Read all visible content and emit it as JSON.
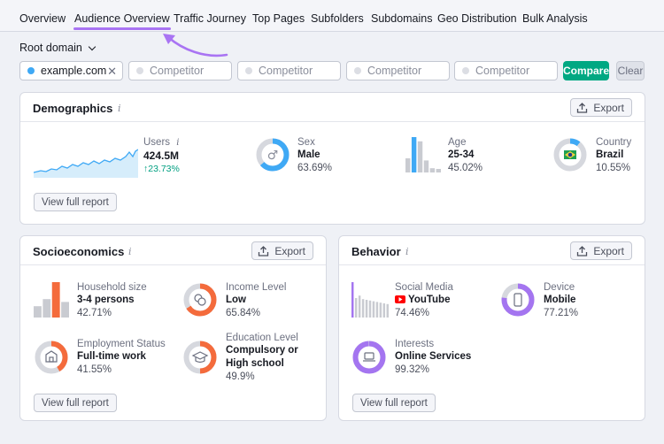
{
  "nav": {
    "tabs": [
      "Overview",
      "Audience Overview",
      "Traffic Journey",
      "Top Pages",
      "Subfolders",
      "Subdomains",
      "Geo Distribution",
      "Bulk Analysis"
    ],
    "active_index": 1
  },
  "root_domain_label": "Root domain",
  "domains": {
    "primary": "example.com",
    "competitor_placeholder": "Competitor",
    "compare_label": "Compare",
    "clear_label": "Clear"
  },
  "colors": {
    "accent_purple": "#a974f3",
    "green": "#00a882",
    "blue": "#3fa9f5",
    "orange": "#f46b3c",
    "violet": "#a475f0"
  },
  "demographics": {
    "title": "Demographics",
    "info": "i",
    "export_label": "Export",
    "view_full_report": "View full report",
    "users": {
      "label": "Users",
      "value": "424.5M",
      "delta": "23.73%",
      "info": "i"
    },
    "sex": {
      "label": "Sex",
      "value": "Male",
      "percent": "63.69%",
      "fraction": 0.6369,
      "icon": "male-icon"
    },
    "age": {
      "label": "Age",
      "value": "25-34",
      "percent": "45.02%",
      "bars": [
        0.4,
        1.0,
        0.88,
        0.34,
        0.12,
        0.1
      ]
    },
    "country": {
      "label": "Country",
      "value": "Brazil",
      "percent": "10.55%",
      "fraction": 0.1055,
      "icon": "brazil-flag-icon"
    }
  },
  "socioeconomics": {
    "title": "Socioeconomics",
    "info": "i",
    "export_label": "Export",
    "view_full_report": "View full report",
    "household": {
      "label": "Household size",
      "value": "3-4 persons",
      "percent": "42.71%",
      "bars": [
        0.32,
        0.52,
        1.0,
        0.44
      ]
    },
    "income": {
      "label": "Income Level",
      "value": "Low",
      "percent": "65.84%",
      "fraction": 0.6584,
      "icon": "coins-icon"
    },
    "employment": {
      "label": "Employment Status",
      "value": "Full-time work",
      "percent": "41.55%",
      "fraction": 0.4155,
      "icon": "building-icon"
    },
    "education": {
      "label": "Education Level",
      "value_line1": "Compulsory or",
      "value_line2": "High school",
      "percent": "49.9%",
      "fraction": 0.499,
      "icon": "graduation-cap-icon"
    }
  },
  "behavior": {
    "title": "Behavior",
    "info": "i",
    "export_label": "Export",
    "view_full_report": "View full report",
    "social": {
      "label": "Social Media",
      "value": "YouTube",
      "percent": "74.46%",
      "bars": [
        1.0,
        0.55,
        0.62,
        0.52,
        0.5,
        0.48,
        0.46,
        0.44,
        0.42,
        0.4,
        0.38
      ]
    },
    "device": {
      "label": "Device",
      "value": "Mobile",
      "percent": "77.21%",
      "fraction": 0.7721,
      "icon": "mobile-icon"
    },
    "interests": {
      "label": "Interests",
      "value": "Online Services",
      "percent": "99.32%",
      "fraction": 0.9932,
      "icon": "laptop-icon"
    }
  }
}
